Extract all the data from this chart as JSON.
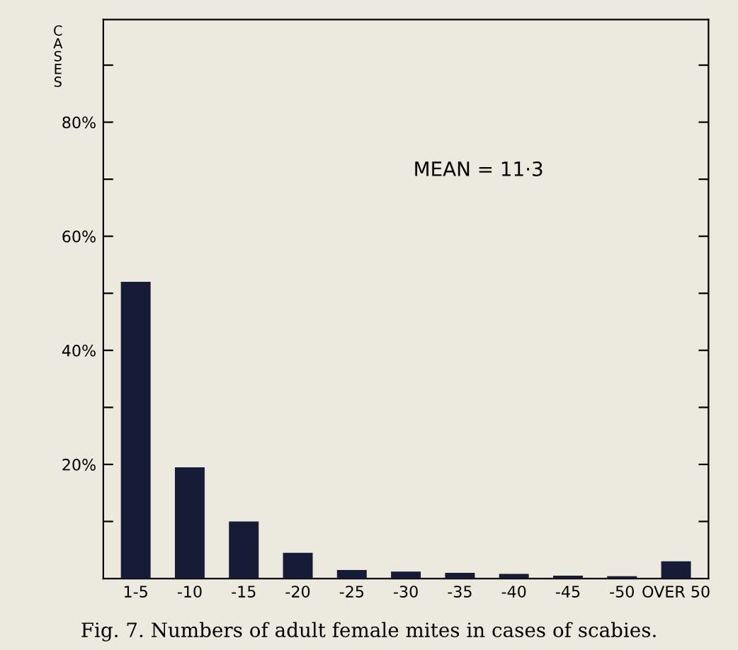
{
  "chart_data": {
    "type": "bar",
    "title": "Fig. 7. Numbers of adult female mites in cases of scabies.",
    "ylabel": "CASES",
    "categories": [
      "1-5",
      "-10",
      "-15",
      "-20",
      "-25",
      "-30",
      "-35",
      "-40",
      "-45",
      "-50",
      "OVER 50"
    ],
    "values": [
      52,
      19.5,
      10,
      4.5,
      1.5,
      1.2,
      1,
      0.8,
      0.5,
      0.4,
      3
    ],
    "color": "#161b36",
    "ylim": [
      0,
      98
    ],
    "yticks": [
      {
        "value": 10,
        "label": null
      },
      {
        "value": 20,
        "label": "20%"
      },
      {
        "value": 30,
        "label": null
      },
      {
        "value": 40,
        "label": "40%"
      },
      {
        "value": 50,
        "label": null
      },
      {
        "value": 60,
        "label": "60%"
      },
      {
        "value": 70,
        "label": null
      },
      {
        "value": 80,
        "label": "80%"
      },
      {
        "value": 90,
        "label": null
      }
    ],
    "annotations": [
      {
        "text": "MEAN = 11·3"
      }
    ],
    "grid": false
  }
}
